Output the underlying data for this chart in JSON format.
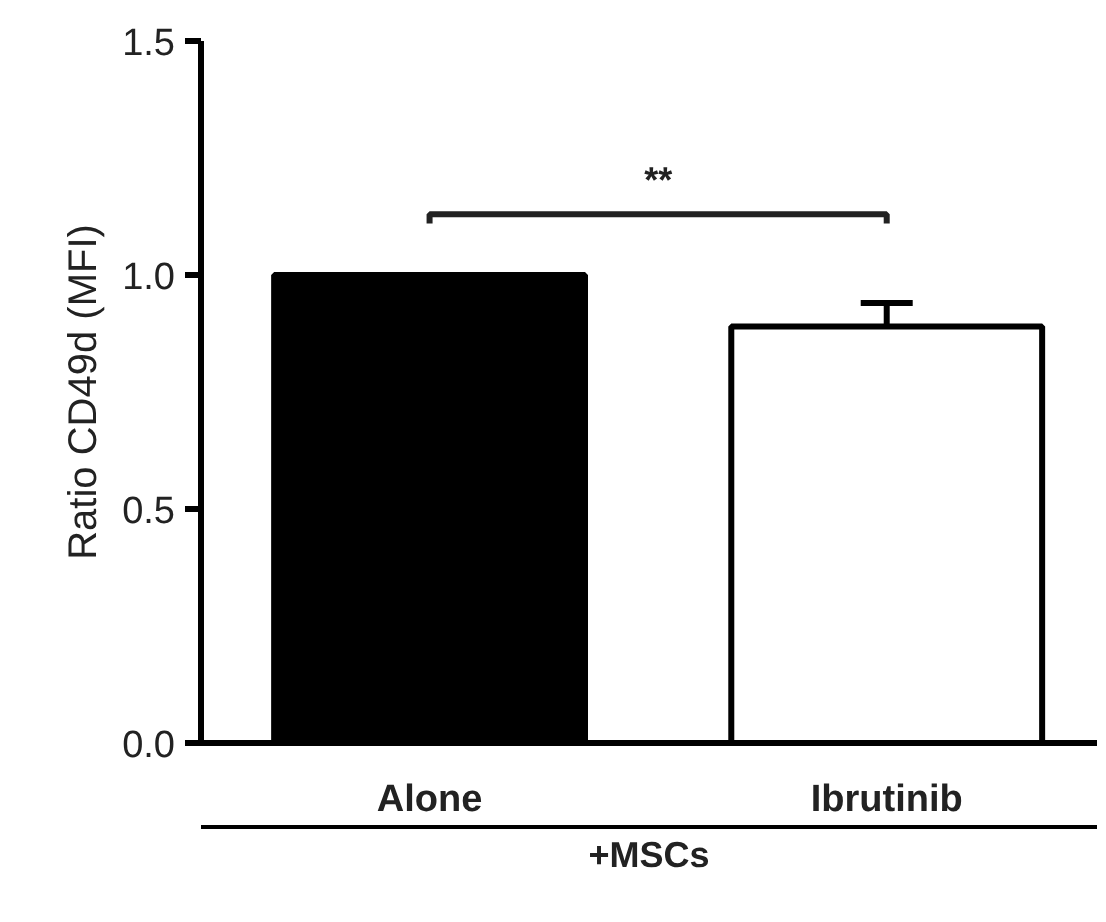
{
  "chart_data": {
    "type": "bar",
    "ylabel": "Ratio CD49d (MFI)",
    "xlabel": "+MSCs",
    "categories": [
      "Alone",
      "Ibrutinib"
    ],
    "values": [
      1.0,
      0.89
    ],
    "errors": [
      null,
      0.05
    ],
    "colors": [
      "#000000",
      "#ffffff"
    ],
    "ylim": [
      0,
      1.5
    ],
    "yticks": [
      {
        "value": 0,
        "label": "0.0"
      },
      {
        "value": 0.5,
        "label": "0.5"
      },
      {
        "value": 1.0,
        "label": "1.0"
      },
      {
        "value": 1.5,
        "label": "1.5"
      }
    ],
    "annotations": [
      "**"
    ],
    "grid": false
  }
}
